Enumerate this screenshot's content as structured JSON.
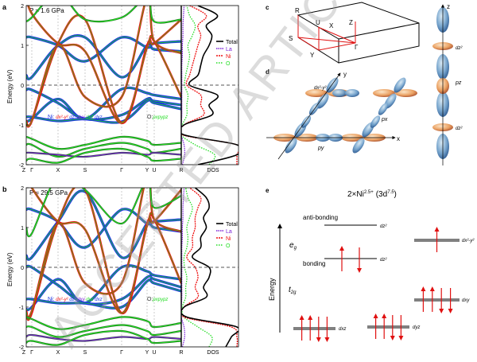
{
  "watermark": "ACCEPTED ARTICLE PREVIEW",
  "panel_a": {
    "label": "a",
    "pressure": "P = 1.6 GPa",
    "ylabel": "Energy (eV)",
    "yticks": [
      "2",
      "1",
      "0",
      "-1",
      "-2"
    ],
    "kpoints": [
      "Z",
      "Γ",
      "X",
      "S",
      "Γ",
      "Y",
      "U",
      "R"
    ],
    "dos_label": "DOS",
    "legend": [
      "Total",
      "La",
      "Ni",
      "O"
    ],
    "ni_label": "Ni:",
    "ni_orbitals": [
      "dx²-y²",
      "dz²",
      "dxy",
      "dyz",
      "dxz"
    ],
    "o_label": "O:",
    "o_orbitals": [
      "px",
      "py",
      "pz"
    ]
  },
  "panel_b": {
    "label": "b",
    "pressure": "P = 29.5 GPa",
    "ylabel": "Energy (eV)",
    "yticks": [
      "2",
      "1",
      "0",
      "-1",
      "-2"
    ],
    "kpoints": [
      "Z",
      "Γ",
      "X",
      "S",
      "Γ",
      "Y",
      "U",
      "R"
    ],
    "dos_label": "DOS",
    "legend": [
      "Total",
      "La",
      "Ni",
      "O"
    ],
    "ni_label": "Ni:",
    "ni_orbitals": [
      "dx²-y²",
      "dz²",
      "dxy",
      "dyz",
      "dxz"
    ],
    "o_label": "O:",
    "o_orbitals": [
      "px",
      "py",
      "pz"
    ]
  },
  "panel_c": {
    "label": "c",
    "points": [
      "R",
      "U",
      "X",
      "Z",
      "S",
      "Γ",
      "Y"
    ]
  },
  "panel_d": {
    "label": "d",
    "axes": [
      "x",
      "y",
      "z"
    ],
    "orbitals": [
      "dx²-y²",
      "px",
      "py",
      "dz²",
      "pz",
      "dz²"
    ]
  },
  "panel_e": {
    "label": "e",
    "title": "2×Ni",
    "title_sup": "2.5+",
    "title_config": "(3d",
    "title_config_sup": "7.5",
    "title_close": ")",
    "energy_label": "Energy",
    "eg": "e",
    "eg_sub": "g",
    "t2g": "t",
    "t2g_sub": "2g",
    "antibonding": "anti-bonding",
    "bonding": "bonding",
    "levels": [
      {
        "name": "dz²",
        "state": "anti-bonding",
        "up": 0,
        "down": 0
      },
      {
        "name": "dz²",
        "state": "bonding",
        "up": 1,
        "down": 1
      },
      {
        "name": "dx²-y²",
        "up": 1,
        "down": 0
      },
      {
        "name": "dxy",
        "up": 2,
        "down": 2
      },
      {
        "name": "dxz",
        "up": 2,
        "down": 2
      },
      {
        "name": "dyz",
        "up": 2,
        "down": 2
      }
    ]
  },
  "colors": {
    "total": "#000000",
    "la": "#7a1fd6",
    "ni": "#ee1111",
    "o": "#22dd22",
    "blue": "#1a35e0",
    "band_dark": "#1f5a1f",
    "watermark": "#c8c8c8"
  },
  "chart_data": [
    {
      "type": "line",
      "title": "P = 1.6 GPa",
      "ylabel": "Energy (eV)",
      "ylim": [
        -2,
        2
      ],
      "kpoints": [
        "Z",
        "Γ",
        "X",
        "S",
        "Γ",
        "Y",
        "U",
        "R"
      ],
      "bands": [
        {
          "color": "blue",
          "values": [
            -0.9,
            -0.85,
            -0.35,
            -0.85,
            -0.1,
            -0.2,
            -0.25,
            -0.35
          ]
        },
        {
          "color": "blue",
          "values": [
            -0.12,
            -0.12,
            -0.45,
            -0.85,
            -0.75,
            -0.35,
            -0.4,
            -0.5
          ]
        },
        {
          "color": "blue",
          "values": [
            -0.8,
            -0.8,
            -0.9,
            -0.85,
            -0.92,
            -0.4,
            -0.45,
            -0.6
          ]
        },
        {
          "color": "blue",
          "values": [
            0.25,
            0.2,
            1.0,
            1.2,
            0.2,
            1.0,
            0.9,
            0.85
          ]
        },
        {
          "color": "blue",
          "values": [
            1.2,
            1.2,
            1.0,
            0.6,
            1.2,
            0.95,
            1.05,
            1.1
          ]
        },
        {
          "color": "ni",
          "values": [
            -0.9,
            -0.9,
            1.05,
            1.65,
            -0.95,
            1.0,
            1.05,
            1.65
          ]
        },
        {
          "color": "ni",
          "values": [
            2.3,
            1.8,
            1.05,
            0.85,
            -0.95,
            0.95,
            1.1,
            -0.3
          ]
        },
        {
          "color": "ni",
          "values": [
            -0.9,
            -0.9,
            1.0,
            -0.3,
            -0.3,
            2.2,
            1.1,
            0.8
          ]
        },
        {
          "color": "o",
          "values": [
            1.6,
            1.7,
            2.3,
            1.65,
            1.7,
            2.2,
            1.6,
            1.65
          ]
        },
        {
          "color": "o",
          "values": [
            -1.3,
            -1.35,
            -1.6,
            -1.5,
            -1.3,
            -1.4,
            -1.5,
            -1.45
          ]
        },
        {
          "color": "o",
          "values": [
            -1.5,
            -1.5,
            -1.8,
            -1.6,
            -1.45,
            -1.6,
            -1.7,
            -1.6
          ]
        },
        {
          "color": "la",
          "values": [
            -1.7,
            -1.7,
            -1.75,
            -1.8,
            -1.7,
            -1.75,
            -1.7,
            -1.75
          ]
        },
        {
          "color": "o",
          "values": [
            -1.9,
            -1.85,
            -1.95,
            -1.7,
            -1.6,
            -1.8,
            -1.9,
            -1.85
          ]
        }
      ],
      "dos_energies": [
        -2,
        -1.75,
        -1.5,
        -1.25,
        -1,
        -0.75,
        -0.5,
        -0.25,
        0,
        0.25,
        0.5,
        0.75,
        1,
        1.25,
        1.5,
        1.75,
        2
      ],
      "dos": {
        "Total": [
          0.3,
          1.0,
          1.0,
          0.05,
          0.05,
          0.55,
          0.5,
          0.65,
          0.15,
          0.3,
          0.35,
          0.4,
          0.5,
          0.55,
          0.45,
          0.65,
          0.3
        ],
        "Ni": [
          1.0,
          1.0,
          1.0,
          0.02,
          0.05,
          0.4,
          0.35,
          0.35,
          0.1,
          0.15,
          0.2,
          0.25,
          0.3,
          0.35,
          0.3,
          0.45,
          0.15
        ],
        "O": [
          0.5,
          0.6,
          0.25,
          0.0,
          0.02,
          0.1,
          0.1,
          0.12,
          0.06,
          0.08,
          0.12,
          0.15,
          0.12,
          0.2,
          0.25,
          0.15,
          0.1
        ],
        "La": [
          0.02,
          0.06,
          0.05,
          0.0,
          0.0,
          0.01,
          0.01,
          0.01,
          0.01,
          0.01,
          0.01,
          0.02,
          0.02,
          0.03,
          0.03,
          0.04,
          0.05
        ]
      }
    },
    {
      "type": "line",
      "title": "P = 29.5 GPa",
      "ylabel": "Energy (eV)",
      "ylim": [
        -2,
        2
      ],
      "kpoints": [
        "Z",
        "Γ",
        "X",
        "S",
        "Γ",
        "Y",
        "U",
        "R"
      ],
      "bands": [
        {
          "color": "blue",
          "values": [
            -1.05,
            -1.0,
            -0.3,
            -0.9,
            0.0,
            -0.1,
            -0.2,
            -0.3
          ]
        },
        {
          "color": "blue",
          "values": [
            0.0,
            0.0,
            -0.45,
            -0.9,
            -0.8,
            -0.25,
            -0.3,
            -0.5
          ]
        },
        {
          "color": "blue",
          "values": [
            -0.8,
            -0.8,
            -0.9,
            -0.9,
            -1.0,
            -0.35,
            -0.4,
            -0.6
          ]
        },
        {
          "color": "blue",
          "values": [
            0.3,
            0.25,
            1.15,
            1.9,
            0.25,
            1.1,
            1.0,
            0.9
          ]
        },
        {
          "color": "blue",
          "values": [
            1.45,
            1.45,
            1.15,
            0.5,
            1.45,
            1.1,
            1.15,
            1.2
          ]
        },
        {
          "color": "ni",
          "values": [
            -1.15,
            -1.15,
            1.15,
            1.95,
            -1.15,
            1.1,
            1.15,
            1.95
          ]
        },
        {
          "color": "ni",
          "values": [
            2.4,
            2.0,
            1.15,
            0.95,
            -1.15,
            1.05,
            1.2,
            -0.4
          ]
        },
        {
          "color": "ni",
          "values": [
            -1.1,
            -1.1,
            1.1,
            -0.4,
            -0.4,
            2.3,
            1.2,
            0.9
          ]
        },
        {
          "color": "o",
          "values": [
            1.0,
            0.85,
            2.3,
            1.95,
            1.1,
            2.2,
            1.5,
            1.8
          ]
        },
        {
          "color": "o",
          "values": [
            -1.25,
            -1.3,
            -1.55,
            -1.45,
            -1.25,
            -1.35,
            -1.5,
            -1.4
          ]
        },
        {
          "color": "o",
          "values": [
            -1.5,
            -1.5,
            -1.75,
            -1.6,
            -1.45,
            -1.6,
            -1.7,
            -1.6
          ]
        },
        {
          "color": "la",
          "values": [
            -1.75,
            -1.7,
            -1.8,
            -1.85,
            -1.75,
            -1.8,
            -1.75,
            -1.8
          ]
        },
        {
          "color": "o",
          "values": [
            -1.9,
            -1.85,
            -1.95,
            -1.7,
            -1.6,
            -1.8,
            -1.9,
            -1.85
          ]
        }
      ],
      "dos_energies": [
        -2,
        -1.75,
        -1.5,
        -1.25,
        -1,
        -0.75,
        -0.5,
        -0.25,
        0,
        0.25,
        0.5,
        0.75,
        1,
        1.25,
        1.5,
        1.75,
        2
      ],
      "dos": {
        "Total": [
          0.8,
          0.9,
          1.0,
          0.1,
          0.05,
          0.45,
          0.4,
          0.5,
          0.5,
          0.2,
          0.35,
          0.35,
          0.45,
          0.4,
          0.5,
          0.45,
          0.25
        ],
        "Ni": [
          1.0,
          1.0,
          0.9,
          0.05,
          0.05,
          0.3,
          0.25,
          0.3,
          0.25,
          0.1,
          0.2,
          0.2,
          0.25,
          0.25,
          0.3,
          0.35,
          0.15
        ],
        "O": [
          0.5,
          0.55,
          0.3,
          0.05,
          0.02,
          0.08,
          0.08,
          0.1,
          0.06,
          0.05,
          0.1,
          0.12,
          0.1,
          0.15,
          0.2,
          0.12,
          0.08
        ],
        "La": [
          0.02,
          0.06,
          0.05,
          0.0,
          0.0,
          0.01,
          0.01,
          0.01,
          0.01,
          0.01,
          0.01,
          0.02,
          0.02,
          0.03,
          0.03,
          0.04,
          0.05
        ]
      }
    }
  ]
}
